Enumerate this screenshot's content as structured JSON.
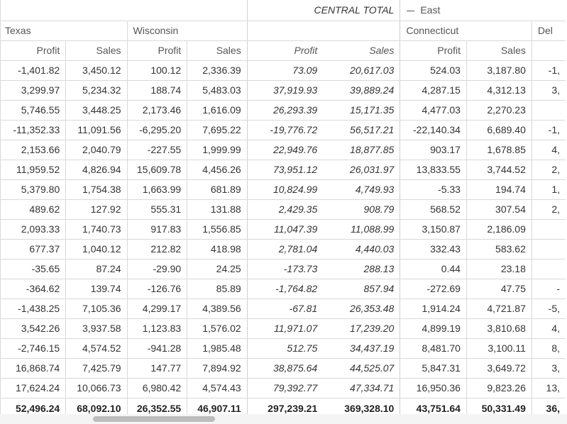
{
  "header": {
    "central_total": "CENTRAL TOTAL",
    "east": "East",
    "states": {
      "texas": "Texas",
      "wisconsin": "Wisconsin",
      "connecticut": "Connecticut",
      "delaware": "Del"
    },
    "measures": {
      "profit": "Profit",
      "sales": "Sales"
    }
  },
  "rows": [
    {
      "tx_p": "-1,401.82",
      "tx_s": "3,450.12",
      "wi_p": "100.12",
      "wi_s": "2,336.39",
      "ct_p": "73.09",
      "ct_s": "20,617.03",
      "cn_p": "524.03",
      "cn_s": "3,187.80",
      "de": "-1,"
    },
    {
      "tx_p": "3,299.97",
      "tx_s": "5,234.32",
      "wi_p": "188.74",
      "wi_s": "5,483.03",
      "ct_p": "37,919.93",
      "ct_s": "39,889.24",
      "cn_p": "4,287.15",
      "cn_s": "4,312.13",
      "de": "3,"
    },
    {
      "tx_p": "5,746.55",
      "tx_s": "3,448.25",
      "wi_p": "2,173.46",
      "wi_s": "1,616.09",
      "ct_p": "26,293.39",
      "ct_s": "15,171.35",
      "cn_p": "4,477.03",
      "cn_s": "2,270.23",
      "de": ""
    },
    {
      "tx_p": "-11,352.33",
      "tx_s": "11,091.56",
      "wi_p": "-6,295.20",
      "wi_s": "7,695.22",
      "ct_p": "-19,776.72",
      "ct_s": "56,517.21",
      "cn_p": "-22,140.34",
      "cn_s": "6,689.40",
      "de": "-1,"
    },
    {
      "tx_p": "2,153.66",
      "tx_s": "2,040.79",
      "wi_p": "-227.55",
      "wi_s": "1,999.99",
      "ct_p": "22,949.76",
      "ct_s": "18,877.85",
      "cn_p": "903.17",
      "cn_s": "1,678.85",
      "de": "4,"
    },
    {
      "tx_p": "11,959.52",
      "tx_s": "4,826.94",
      "wi_p": "15,609.78",
      "wi_s": "4,456.26",
      "ct_p": "73,951.12",
      "ct_s": "26,031.97",
      "cn_p": "13,833.55",
      "cn_s": "3,744.52",
      "de": "2,"
    },
    {
      "tx_p": "5,379.80",
      "tx_s": "1,754.38",
      "wi_p": "1,663.99",
      "wi_s": "681.89",
      "ct_p": "10,824.99",
      "ct_s": "4,749.93",
      "cn_p": "-5.33",
      "cn_s": "194.74",
      "de": "1,"
    },
    {
      "tx_p": "489.62",
      "tx_s": "127.92",
      "wi_p": "555.31",
      "wi_s": "131.88",
      "ct_p": "2,429.35",
      "ct_s": "908.79",
      "cn_p": "568.52",
      "cn_s": "307.54",
      "de": "2,"
    },
    {
      "tx_p": "2,093.33",
      "tx_s": "1,740.73",
      "wi_p": "917.83",
      "wi_s": "1,556.85",
      "ct_p": "11,047.39",
      "ct_s": "11,088.99",
      "cn_p": "3,150.87",
      "cn_s": "2,186.09",
      "de": ""
    },
    {
      "tx_p": "677.37",
      "tx_s": "1,040.12",
      "wi_p": "212.82",
      "wi_s": "418.98",
      "ct_p": "2,781.04",
      "ct_s": "4,440.03",
      "cn_p": "332.43",
      "cn_s": "583.62",
      "de": ""
    },
    {
      "tx_p": "-35.65",
      "tx_s": "87.24",
      "wi_p": "-29.90",
      "wi_s": "24.25",
      "ct_p": "-173.73",
      "ct_s": "288.13",
      "cn_p": "0.44",
      "cn_s": "23.18",
      "de": ""
    },
    {
      "tx_p": "-364.62",
      "tx_s": "139.74",
      "wi_p": "-126.76",
      "wi_s": "85.89",
      "ct_p": "-1,764.82",
      "ct_s": "857.94",
      "cn_p": "-272.69",
      "cn_s": "47.75",
      "de": "-"
    },
    {
      "tx_p": "-1,438.25",
      "tx_s": "7,105.36",
      "wi_p": "4,299.17",
      "wi_s": "4,389.56",
      "ct_p": "-67.81",
      "ct_s": "26,353.48",
      "cn_p": "1,914.24",
      "cn_s": "4,721.87",
      "de": "-5,"
    },
    {
      "tx_p": "3,542.26",
      "tx_s": "3,937.58",
      "wi_p": "1,123.83",
      "wi_s": "1,576.02",
      "ct_p": "11,971.07",
      "ct_s": "17,239.20",
      "cn_p": "4,899.19",
      "cn_s": "3,810.68",
      "de": "4,"
    },
    {
      "tx_p": "-2,746.15",
      "tx_s": "4,574.52",
      "wi_p": "-941.28",
      "wi_s": "1,985.48",
      "ct_p": "512.75",
      "ct_s": "34,437.19",
      "cn_p": "8,481.70",
      "cn_s": "3,100.11",
      "de": "8,"
    },
    {
      "tx_p": "16,868.74",
      "tx_s": "7,425.79",
      "wi_p": "147.77",
      "wi_s": "7,894.92",
      "ct_p": "38,875.64",
      "ct_s": "44,525.07",
      "cn_p": "5,847.31",
      "cn_s": "3,649.72",
      "de": "3,"
    },
    {
      "tx_p": "17,624.24",
      "tx_s": "10,066.73",
      "wi_p": "6,980.42",
      "wi_s": "4,574.43",
      "ct_p": "79,392.77",
      "ct_s": "47,334.71",
      "cn_p": "16,950.36",
      "cn_s": "9,823.26",
      "de": "13,"
    }
  ],
  "totals": {
    "tx_p": "52,496.24",
    "tx_s": "68,092.10",
    "wi_p": "26,352.55",
    "wi_s": "46,907.11",
    "ct_p": "297,239.21",
    "ct_s": "369,328.10",
    "cn_p": "43,751.64",
    "cn_s": "50,331.49",
    "de": "36,"
  }
}
